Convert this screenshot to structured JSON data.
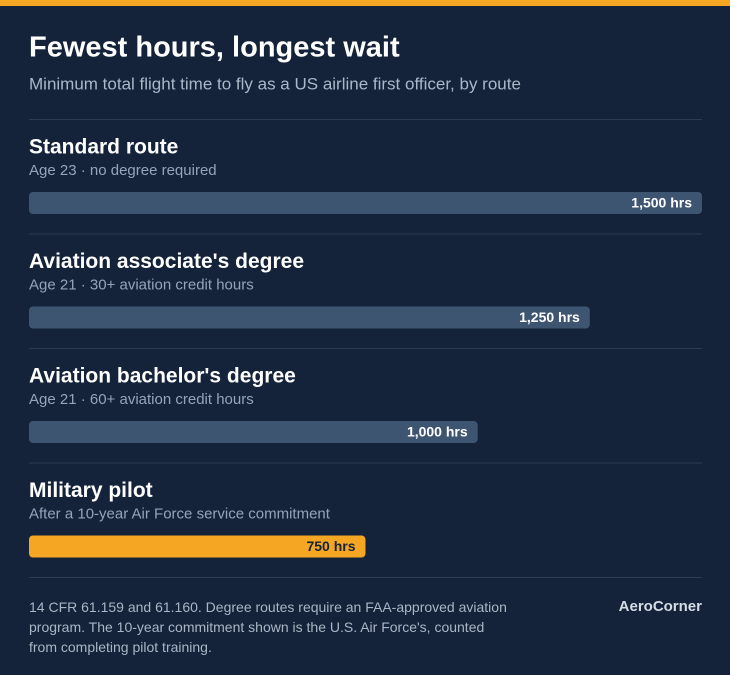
{
  "chart_data": {
    "type": "hbar",
    "title": "Fewest hours, longest wait",
    "subtitle": "Minimum total flight time to fly as a US airline first officer, by route",
    "categories": [
      "Standard route",
      "Aviation associate's degree",
      "Aviation bachelor's degree",
      "Military pilot"
    ],
    "descriptions": [
      "Age 23 · no degree required",
      "Age 21 · 30+ aviation credit hours",
      "Age 21 · 60+ aviation credit hours",
      "After a 10-year Air Force service commitment"
    ],
    "values": [
      1500,
      1250,
      1000,
      750
    ],
    "value_labels": [
      "1,500 hrs",
      "1,250 hrs",
      "1,000 hrs",
      "750 hrs"
    ],
    "colors": [
      "#3d5570",
      "#3d5570",
      "#3d5570",
      "#f5a623"
    ],
    "value_label_colors": [
      "#ffffff",
      "#ffffff",
      "#ffffff",
      "#14233a"
    ],
    "footnote": "14 CFR 61.159 and 61.160. Degree routes require an FAA-approved aviation program. The 10-year commitment shown is the U.S. Air Force's, counted from completing pilot training.",
    "source": "AeroCorner"
  }
}
